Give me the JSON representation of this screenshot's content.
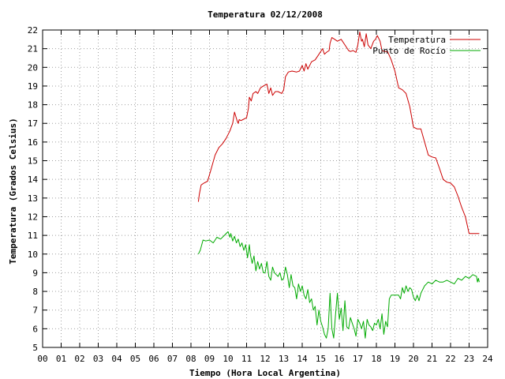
{
  "chart_data": {
    "type": "line",
    "title": "Temperatura 02/12/2008",
    "xlabel": "Tiempo (Hora Local Argentina)",
    "ylabel": "Temperatura (Grados Celsius)",
    "xlim": [
      0,
      24
    ],
    "ylim": [
      5,
      22
    ],
    "grid": true,
    "legend_position": "top-right",
    "x_tick_labels": [
      "00",
      "01",
      "02",
      "03",
      "04",
      "05",
      "06",
      "07",
      "08",
      "09",
      "10",
      "11",
      "12",
      "13",
      "14",
      "15",
      "16",
      "17",
      "18",
      "19",
      "20",
      "21",
      "22",
      "23",
      "24"
    ],
    "y_tick_labels": [
      "5",
      "6",
      "7",
      "8",
      "9",
      "10",
      "11",
      "12",
      "13",
      "14",
      "15",
      "16",
      "17",
      "18",
      "19",
      "20",
      "21",
      "22"
    ],
    "series": [
      {
        "name": "Temperatura",
        "color": "#cc0000",
        "x": [
          8.4,
          8.45,
          8.55,
          8.7,
          8.9,
          9.1,
          9.3,
          9.5,
          9.7,
          9.9,
          10.1,
          10.25,
          10.35,
          10.5,
          10.55,
          10.6,
          10.7,
          10.8,
          11.0,
          11.1,
          11.15,
          11.25,
          11.35,
          11.5,
          11.6,
          11.75,
          11.9,
          12.1,
          12.2,
          12.3,
          12.4,
          12.55,
          12.7,
          12.9,
          13.0,
          13.1,
          13.25,
          13.45,
          13.7,
          13.85,
          14.0,
          14.1,
          14.2,
          14.3,
          14.5,
          14.7,
          14.9,
          15.1,
          15.2,
          15.3,
          15.45,
          15.5,
          15.6,
          15.75,
          15.9,
          16.1,
          16.3,
          16.5,
          16.6,
          16.75,
          16.9,
          17.0,
          17.1,
          17.2,
          17.25,
          17.35,
          17.45,
          17.55,
          17.7,
          17.85,
          17.95,
          18.05,
          18.2,
          18.3,
          18.45,
          18.6,
          18.8,
          19.0,
          19.2,
          19.4,
          19.6,
          19.8,
          20.0,
          20.2,
          20.4,
          20.6,
          20.8,
          21.0,
          21.2,
          21.4,
          21.6,
          21.8,
          22.0,
          22.2,
          22.4,
          22.6,
          22.8,
          23.0,
          23.1,
          23.2,
          23.3,
          23.4,
          23.5,
          23.55
        ],
        "values": [
          12.8,
          13.2,
          13.7,
          13.8,
          13.9,
          14.6,
          15.3,
          15.7,
          15.9,
          16.2,
          16.6,
          17.0,
          17.6,
          17.1,
          17.0,
          17.2,
          17.15,
          17.2,
          17.3,
          17.8,
          18.4,
          18.2,
          18.6,
          18.7,
          18.6,
          18.9,
          19.0,
          19.1,
          18.6,
          18.9,
          18.5,
          18.7,
          18.7,
          18.6,
          18.8,
          19.5,
          19.75,
          19.8,
          19.75,
          19.8,
          20.1,
          19.8,
          20.2,
          19.9,
          20.3,
          20.4,
          20.7,
          21.0,
          20.7,
          20.8,
          20.9,
          21.3,
          21.6,
          21.5,
          21.4,
          21.5,
          21.2,
          20.9,
          20.85,
          20.9,
          20.8,
          21.2,
          21.9,
          21.4,
          21.5,
          21.1,
          21.8,
          21.2,
          21.0,
          21.4,
          21.5,
          21.7,
          21.4,
          20.9,
          20.85,
          20.85,
          20.4,
          19.8,
          18.9,
          18.8,
          18.6,
          17.9,
          16.8,
          16.7,
          16.7,
          16.0,
          15.3,
          15.2,
          15.15,
          14.6,
          14.0,
          13.85,
          13.8,
          13.6,
          13.1,
          12.5,
          12.0,
          11.1,
          11.1,
          11.1,
          11.1,
          11.1,
          11.1,
          11.1
        ]
      },
      {
        "name": "Punto de Rocío",
        "color": "#00aa00",
        "x": [
          8.4,
          8.5,
          8.65,
          8.8,
          9.0,
          9.2,
          9.4,
          9.6,
          9.8,
          10.0,
          10.1,
          10.15,
          10.25,
          10.35,
          10.45,
          10.55,
          10.65,
          10.75,
          10.85,
          10.95,
          11.05,
          11.15,
          11.2,
          11.3,
          11.4,
          11.5,
          11.6,
          11.7,
          11.8,
          11.9,
          12.0,
          12.1,
          12.2,
          12.3,
          12.4,
          12.5,
          12.6,
          12.7,
          12.8,
          12.9,
          13.0,
          13.1,
          13.2,
          13.3,
          13.4,
          13.5,
          13.6,
          13.7,
          13.8,
          13.9,
          14.0,
          14.1,
          14.2,
          14.3,
          14.4,
          14.5,
          14.6,
          14.7,
          14.8,
          14.9,
          15.0,
          15.1,
          15.2,
          15.3,
          15.4,
          15.5,
          15.6,
          15.7,
          15.8,
          15.9,
          16.0,
          16.1,
          16.2,
          16.3,
          16.4,
          16.5,
          16.6,
          16.7,
          16.8,
          16.9,
          17.0,
          17.1,
          17.2,
          17.3,
          17.4,
          17.5,
          17.6,
          17.7,
          17.8,
          17.9,
          18.0,
          18.1,
          18.2,
          18.3,
          18.4,
          18.5,
          18.6,
          18.7,
          18.8,
          18.9,
          19.0,
          19.1,
          19.2,
          19.3,
          19.4,
          19.5,
          19.6,
          19.7,
          19.8,
          19.9,
          20.0,
          20.1,
          20.2,
          20.3,
          20.4,
          20.6,
          20.8,
          21.0,
          21.2,
          21.4,
          21.6,
          21.8,
          22.0,
          22.2,
          22.4,
          22.6,
          22.8,
          23.0,
          23.2,
          23.4,
          23.45,
          23.5,
          23.55
        ],
        "values": [
          10.0,
          10.2,
          10.75,
          10.7,
          10.75,
          10.6,
          10.9,
          10.8,
          11.0,
          11.2,
          10.9,
          11.1,
          10.7,
          10.95,
          10.6,
          10.8,
          10.4,
          10.6,
          10.2,
          10.5,
          9.8,
          10.5,
          10.0,
          9.5,
          9.9,
          9.1,
          9.6,
          9.2,
          9.5,
          9.0,
          9.0,
          9.6,
          8.8,
          8.6,
          9.3,
          9.0,
          8.9,
          8.8,
          9.0,
          8.6,
          8.7,
          9.3,
          8.9,
          8.2,
          8.9,
          8.3,
          8.2,
          7.6,
          8.4,
          8.0,
          8.3,
          7.8,
          7.6,
          8.1,
          7.4,
          7.6,
          7.0,
          7.2,
          6.2,
          7.0,
          6.4,
          6.1,
          5.7,
          5.5,
          6.0,
          7.9,
          6.0,
          5.5,
          6.8,
          7.9,
          6.5,
          7.1,
          5.9,
          7.5,
          6.1,
          6.0,
          6.6,
          6.3,
          6.0,
          5.6,
          6.5,
          6.3,
          6.0,
          6.4,
          5.5,
          6.5,
          6.2,
          6.1,
          5.9,
          6.3,
          6.2,
          6.5,
          6.0,
          6.8,
          5.7,
          6.4,
          6.1,
          7.6,
          7.8,
          7.8,
          7.8,
          7.8,
          7.8,
          7.6,
          8.2,
          7.9,
          8.3,
          8.0,
          8.2,
          8.1,
          7.7,
          7.5,
          7.8,
          7.5,
          7.9,
          8.3,
          8.5,
          8.4,
          8.6,
          8.5,
          8.5,
          8.6,
          8.5,
          8.4,
          8.7,
          8.6,
          8.8,
          8.7,
          8.9,
          8.8,
          8.5,
          8.7,
          8.5
        ]
      }
    ]
  }
}
